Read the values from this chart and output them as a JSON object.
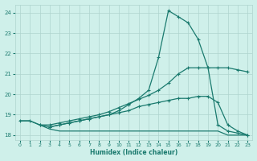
{
  "xlabel": "Humidex (Indice chaleur)",
  "xlim": [
    -0.5,
    23.5
  ],
  "ylim": [
    17.75,
    24.4
  ],
  "yticks": [
    18,
    19,
    20,
    21,
    22,
    23,
    24
  ],
  "xticks": [
    0,
    1,
    2,
    3,
    4,
    5,
    6,
    7,
    8,
    9,
    10,
    11,
    12,
    13,
    14,
    15,
    16,
    17,
    18,
    19,
    20,
    21,
    22,
    23
  ],
  "bg_color": "#cff0ea",
  "grid_color": "#aed4ce",
  "line_color": "#1a7a6e",
  "lines": [
    {
      "x": [
        0,
        1,
        2,
        3,
        4,
        5,
        6,
        7,
        8,
        9,
        10,
        11,
        12,
        13,
        14,
        15,
        16,
        17,
        18,
        19,
        20,
        21,
        22,
        23
      ],
      "y": [
        18.7,
        18.7,
        18.5,
        18.3,
        18.2,
        18.2,
        18.2,
        18.2,
        18.2,
        18.2,
        18.2,
        18.2,
        18.2,
        18.2,
        18.2,
        18.2,
        18.2,
        18.2,
        18.2,
        18.2,
        18.2,
        18.0,
        18.0,
        18.0
      ],
      "marker": null
    },
    {
      "x": [
        0,
        1,
        2,
        3,
        4,
        5,
        6,
        7,
        8,
        9,
        10,
        11,
        12,
        13,
        14,
        15,
        16,
        17,
        18,
        19,
        20,
        21,
        22,
        23
      ],
      "y": [
        18.7,
        18.7,
        18.5,
        18.4,
        18.5,
        18.6,
        18.7,
        18.8,
        18.9,
        19.0,
        19.1,
        19.2,
        19.4,
        19.5,
        19.6,
        19.7,
        19.8,
        19.8,
        19.9,
        19.9,
        19.6,
        18.5,
        18.2,
        18.0
      ],
      "marker": "+"
    },
    {
      "x": [
        2,
        3,
        4,
        5,
        6,
        7,
        8,
        9,
        10,
        11,
        12,
        13,
        14,
        15,
        16,
        17,
        18,
        19,
        20,
        21,
        22,
        23
      ],
      "y": [
        18.5,
        18.5,
        18.6,
        18.7,
        18.8,
        18.9,
        19.0,
        19.15,
        19.35,
        19.55,
        19.75,
        19.95,
        20.2,
        20.55,
        21.0,
        21.3,
        21.3,
        21.3,
        21.3,
        21.3,
        21.2,
        21.1
      ],
      "marker": "+"
    },
    {
      "x": [
        3,
        4,
        5,
        6,
        7,
        8,
        9,
        10,
        11,
        12,
        13,
        14,
        15,
        16,
        17,
        18,
        19,
        20,
        21,
        22,
        23
      ],
      "y": [
        18.4,
        18.5,
        18.6,
        18.7,
        18.8,
        18.9,
        19.0,
        19.2,
        19.5,
        19.8,
        20.2,
        21.8,
        24.1,
        23.8,
        23.5,
        22.7,
        21.3,
        18.5,
        18.2,
        18.1,
        18.0
      ],
      "marker": "+"
    }
  ]
}
